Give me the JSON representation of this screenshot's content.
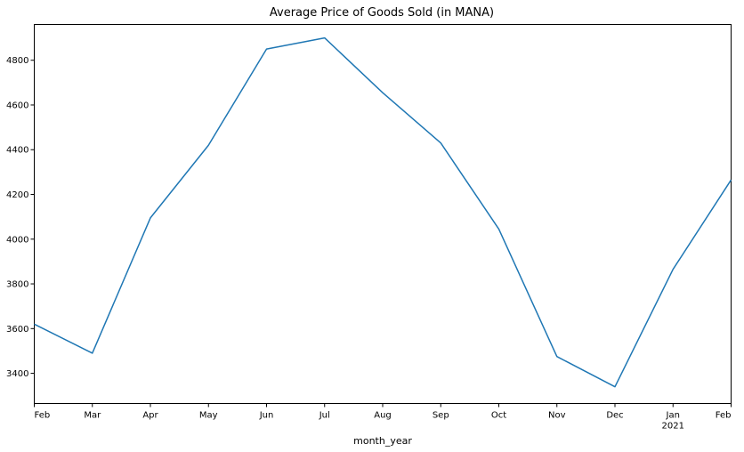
{
  "chart_data": {
    "type": "line",
    "title": "Average Price of Goods Sold (in MANA)",
    "xlabel": "month_year",
    "ylabel": "",
    "x": [
      "2020-02",
      "2020-03",
      "2020-04",
      "2020-05",
      "2020-06",
      "2020-07",
      "2020-08",
      "2020-09",
      "2020-10",
      "2020-11",
      "2020-12",
      "2021-01",
      "2021-02"
    ],
    "x_tick_labels": [
      "Feb",
      "Mar",
      "Apr",
      "May",
      "Jun",
      "Jul",
      "Aug",
      "Sep",
      "Oct",
      "Nov",
      "Dec",
      "Jan",
      "Feb"
    ],
    "x_year_label": {
      "index": 11,
      "text": "2021"
    },
    "series": [
      {
        "values": [
          3620,
          3490,
          4095,
          4420,
          4850,
          4900,
          4655,
          4430,
          4045,
          3475,
          3340,
          3865,
          4265
        ],
        "color": "#1f77b4"
      }
    ],
    "ylim": [
      3265,
      4960
    ],
    "y_ticks": [
      3400,
      3600,
      3800,
      4000,
      4200,
      4400,
      4600,
      4800
    ],
    "grid": false,
    "legend": "none"
  }
}
